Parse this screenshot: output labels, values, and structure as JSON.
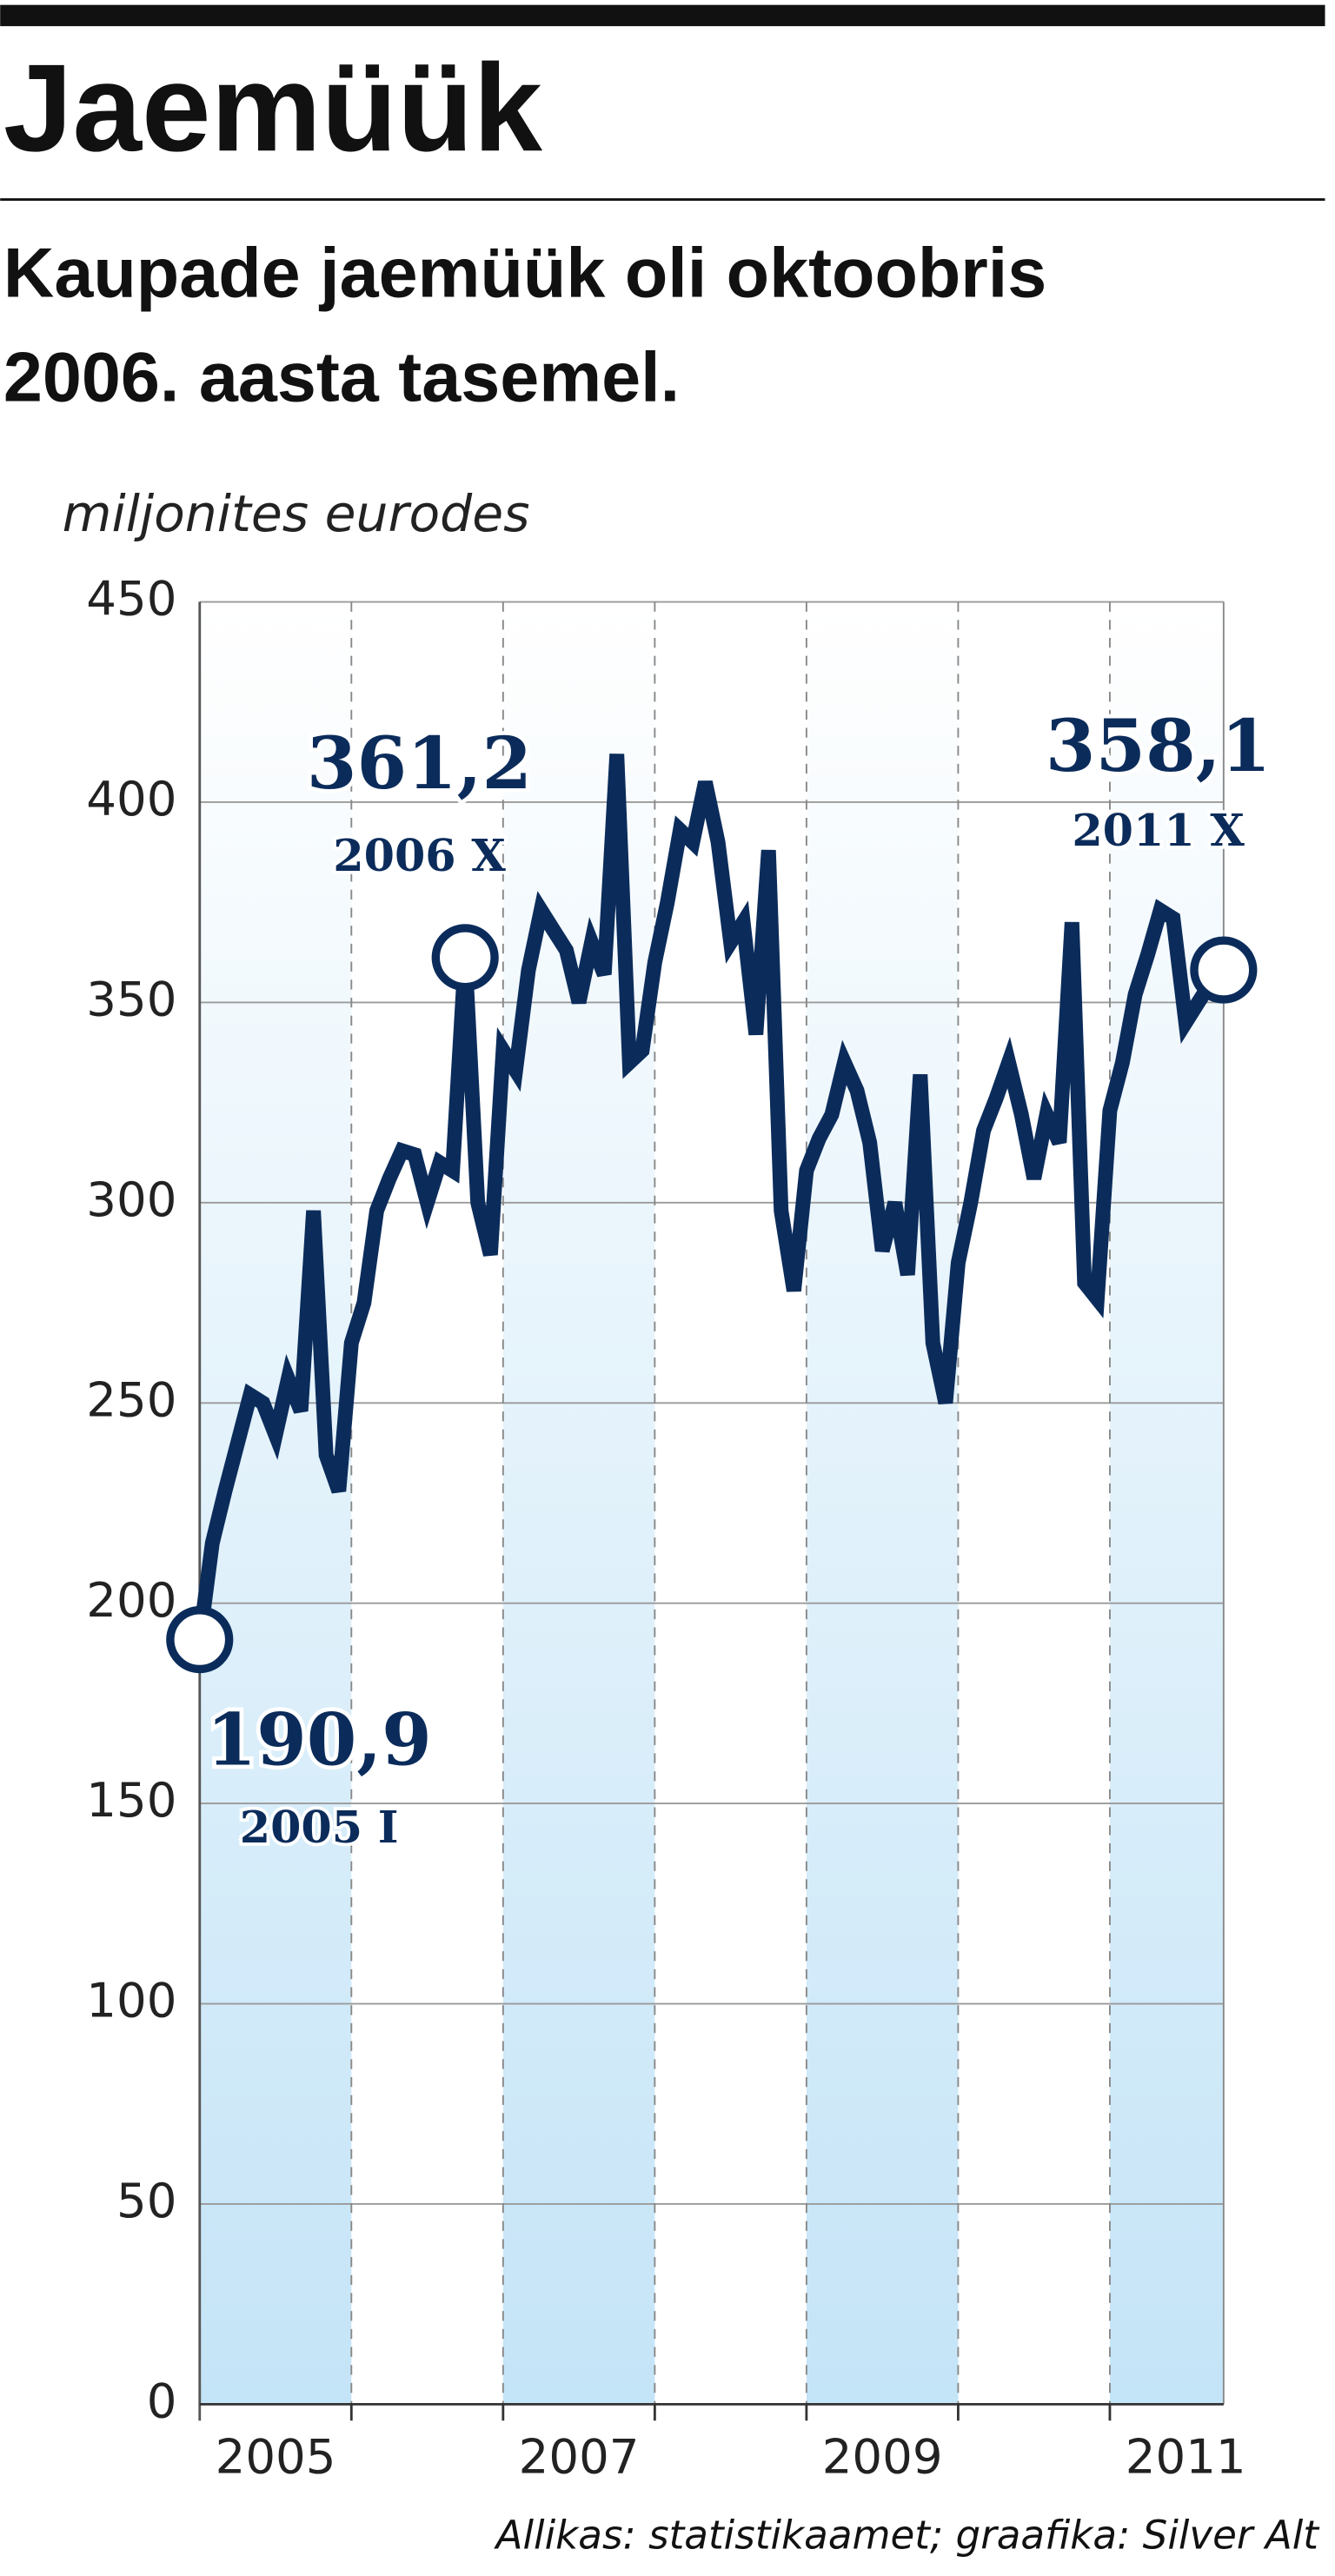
{
  "chart_data": {
    "type": "line",
    "title": "Jaemüük",
    "subtitle_lines": [
      "Kaupade jaemüük oli oktoobris",
      "2006. aasta tasemel."
    ],
    "y_label": "miljonites eurodes",
    "source": "Allikas: statistikaamet; graafika: Silver Alt",
    "x": [
      2005,
      2005.083,
      2005.167,
      2005.25,
      2005.333,
      2005.417,
      2005.5,
      2005.583,
      2005.667,
      2005.75,
      2005.833,
      2005.917,
      2006,
      2006.083,
      2006.167,
      2006.25,
      2006.333,
      2006.417,
      2006.5,
      2006.583,
      2006.667,
      2006.75,
      2006.833,
      2006.917,
      2007,
      2007.083,
      2007.167,
      2007.25,
      2007.333,
      2007.417,
      2007.5,
      2007.583,
      2007.667,
      2007.75,
      2007.833,
      2007.917,
      2008,
      2008.083,
      2008.167,
      2008.25,
      2008.333,
      2008.417,
      2008.5,
      2008.583,
      2008.667,
      2008.75,
      2008.833,
      2008.917,
      2009,
      2009.083,
      2009.167,
      2009.25,
      2009.333,
      2009.417,
      2009.5,
      2009.583,
      2009.667,
      2009.75,
      2009.833,
      2009.917,
      2010,
      2010.083,
      2010.167,
      2010.25,
      2010.333,
      2010.417,
      2010.5,
      2010.583,
      2010.667,
      2010.75,
      2010.833,
      2010.917,
      2011,
      2011.083,
      2011.167,
      2011.25,
      2011.333,
      2011.417,
      2011.5,
      2011.583,
      2011.667,
      2011.75
    ],
    "series": [
      {
        "color": "#0b2c5b",
        "values": [
          190.9,
          215,
          228,
          240,
          252,
          250,
          242,
          256,
          248,
          298,
          237,
          228,
          265,
          275,
          298,
          306,
          313,
          312,
          300,
          310,
          308,
          361.2,
          300,
          287,
          338,
          333,
          358,
          373,
          368,
          363,
          350,
          365,
          357,
          412,
          335,
          338,
          360,
          375,
          393,
          390,
          405,
          390,
          365,
          370,
          342,
          388,
          298,
          278,
          308,
          316,
          322,
          335,
          328,
          315,
          288,
          300,
          282,
          332,
          265,
          250,
          285,
          300,
          318,
          326,
          335,
          322,
          306,
          322,
          315,
          370,
          280,
          276,
          323,
          335,
          352,
          362,
          373,
          371,
          345,
          350,
          355,
          358.1
        ],
        "value_labels": [
          "190,9",
          null,
          null,
          null,
          null,
          null,
          null,
          null,
          null,
          null,
          null,
          null,
          null,
          null,
          null,
          null,
          null,
          null,
          null,
          null,
          null,
          "361,2",
          null,
          null,
          null,
          null,
          null,
          null,
          null,
          null,
          null,
          null,
          null,
          null,
          null,
          null,
          null,
          null,
          null,
          null,
          null,
          null,
          null,
          null,
          null,
          null,
          null,
          null,
          null,
          null,
          null,
          null,
          null,
          null,
          null,
          null,
          null,
          null,
          null,
          null,
          null,
          null,
          null,
          null,
          null,
          null,
          null,
          null,
          null,
          null,
          null,
          null,
          null,
          null,
          null,
          null,
          null,
          null,
          null,
          null,
          null,
          "358,1"
        ],
        "point_notes": [
          "2005 I",
          null,
          null,
          null,
          null,
          null,
          null,
          null,
          null,
          null,
          null,
          null,
          null,
          null,
          null,
          null,
          null,
          null,
          null,
          null,
          null,
          "2006 X",
          null,
          null,
          null,
          null,
          null,
          null,
          null,
          null,
          null,
          null,
          null,
          null,
          null,
          null,
          null,
          null,
          null,
          null,
          null,
          null,
          null,
          null,
          null,
          null,
          null,
          null,
          null,
          null,
          null,
          null,
          null,
          null,
          null,
          null,
          null,
          null,
          null,
          null,
          null,
          null,
          null,
          null,
          null,
          null,
          null,
          null,
          null,
          null,
          null,
          null,
          null,
          null,
          null,
          null,
          null,
          null,
          null,
          null,
          null,
          "2011 X"
        ]
      }
    ],
    "xlim": [
      2005,
      2011.75
    ],
    "xticks": [
      2005,
      2007,
      2009,
      2011
    ],
    "xgrid": [
      2006,
      2007,
      2008,
      2009,
      2010,
      2011
    ],
    "ylim": [
      0,
      450
    ],
    "yticks": [
      0,
      50,
      100,
      150,
      200,
      250,
      300,
      350,
      400,
      450
    ],
    "grid": true
  }
}
